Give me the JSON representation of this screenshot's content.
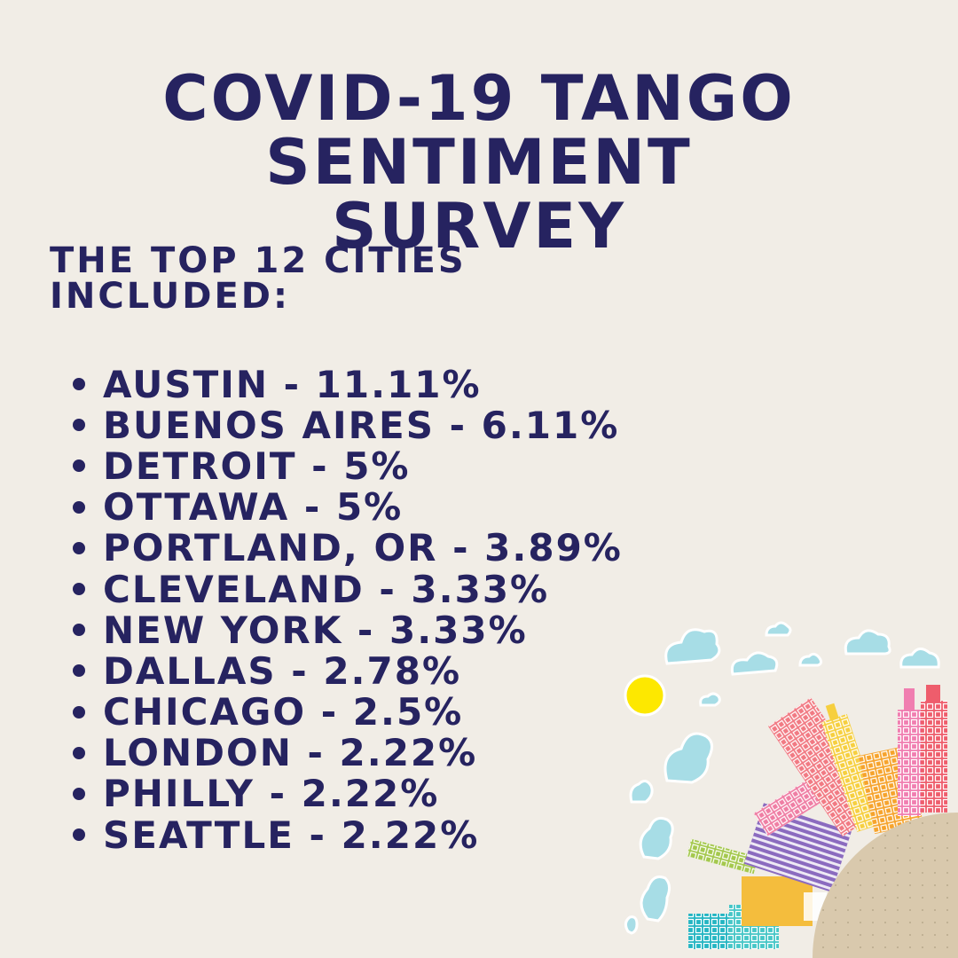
{
  "title_lines": [
    "COVID-19 TANGO",
    "SENTIMENT",
    "SURVEY"
  ],
  "subtitle_lines": [
    "THE TOP 12 CITIES",
    "INCLUDED:"
  ],
  "cities": [
    {
      "text": "AUSTIN - 11.11%"
    },
    {
      "text": "BUENOS AIRES - 6.11%"
    },
    {
      "text": "DETROIT - 5%"
    },
    {
      "text": "OTTAWA - 5%"
    },
    {
      "text": "PORTLAND, OR - 3.89%"
    },
    {
      "text": "CLEVELAND - 3.33%"
    },
    {
      "text": "NEW YORK - 3.33%"
    },
    {
      "text": "DALLAS - 2.78%"
    },
    {
      "text": "CHICAGO - 2.5%"
    },
    {
      "text": "LONDON - 2.22%"
    },
    {
      "text": "PHILLY - 2.22%"
    },
    {
      "text": "SEATTLE - 2.22%"
    }
  ],
  "colors": {
    "background": "#f1ede6",
    "text": "#262360",
    "sun": "#fde800",
    "cloud": "#a7dde6",
    "ground": "#d9c9ad"
  }
}
